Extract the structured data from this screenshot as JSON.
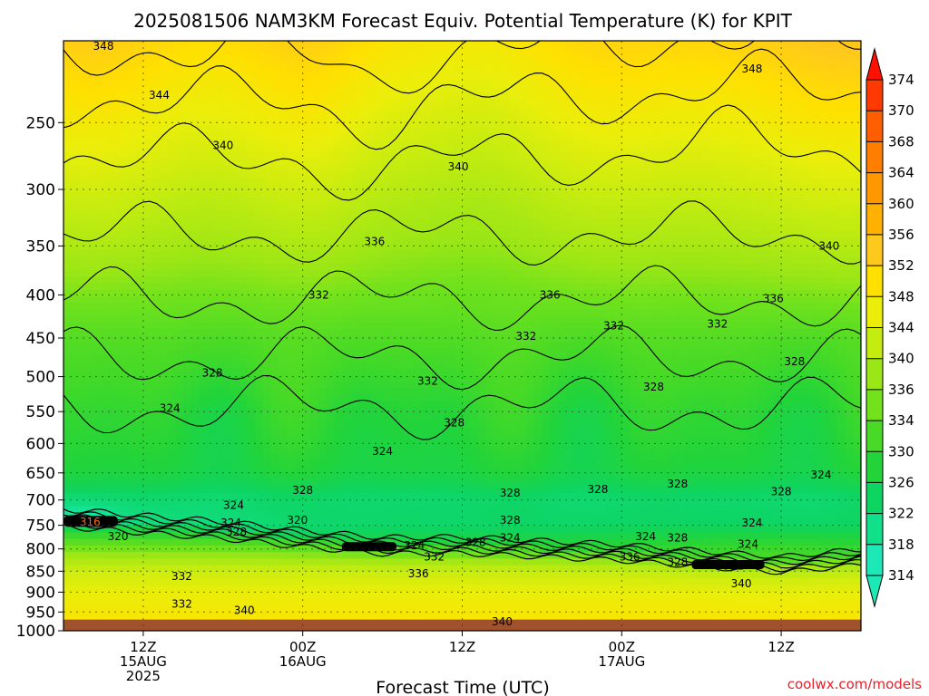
{
  "title": "2025081506 NAM3KM Forecast Equiv. Potential Temperature (K) for KPIT",
  "watermark": "coolwx.com/models",
  "chart_data": {
    "type": "heatmap",
    "title": "2025081506 NAM3KM Forecast Equiv. Potential Temperature (K) for KPIT",
    "xlabel": "Forecast Time (UTC)",
    "ylabel": "",
    "x_range_hours": [
      0,
      60
    ],
    "y_axis": "pressure (hPa), log scale, inverted",
    "y_range": [
      1000,
      200
    ],
    "y_ticks": [
      250,
      300,
      350,
      400,
      450,
      500,
      550,
      600,
      650,
      700,
      750,
      800,
      850,
      900,
      950,
      1000
    ],
    "x_ticks": [
      {
        "hour": 6,
        "label": "12Z",
        "sub1": "15AUG",
        "sub2": "2025"
      },
      {
        "hour": 18,
        "label": "00Z",
        "sub1": "16AUG",
        "sub2": ""
      },
      {
        "hour": 30,
        "label": "12Z",
        "sub1": "",
        "sub2": ""
      },
      {
        "hour": 42,
        "label": "00Z",
        "sub1": "17AUG",
        "sub2": ""
      },
      {
        "hour": 54,
        "label": "12Z",
        "sub1": "",
        "sub2": ""
      }
    ],
    "grid": true,
    "colorbar": {
      "labels": [
        314,
        318,
        322,
        326,
        330,
        334,
        336,
        340,
        344,
        348,
        352,
        356,
        360,
        364,
        368,
        370,
        374
      ],
      "colors": [
        "#1de9b6",
        "#11e08a",
        "#0ed462",
        "#22d43a",
        "#48da26",
        "#72e21c",
        "#9ae616",
        "#c4ec10",
        "#eaee0a",
        "#ffe000",
        "#ffc81c",
        "#ffb000",
        "#ff9800",
        "#ff7e00",
        "#ff5e00",
        "#ff3a00",
        "#ff1000"
      ],
      "extend": "both"
    },
    "profile": [
      {
        "p": 200,
        "theta_e": 349
      },
      {
        "p": 250,
        "theta_e": 344
      },
      {
        "p": 300,
        "theta_e": 340
      },
      {
        "p": 350,
        "theta_e": 337
      },
      {
        "p": 400,
        "theta_e": 334
      },
      {
        "p": 450,
        "theta_e": 331
      },
      {
        "p": 500,
        "theta_e": 329
      },
      {
        "p": 550,
        "theta_e": 327
      },
      {
        "p": 600,
        "theta_e": 326
      },
      {
        "p": 650,
        "theta_e": 325
      },
      {
        "p": 700,
        "theta_e": 321
      },
      {
        "p": 750,
        "theta_e": 322
      },
      {
        "p": 800,
        "theta_e": 330
      },
      {
        "p": 850,
        "theta_e": 336
      },
      {
        "p": 900,
        "theta_e": 339
      },
      {
        "p": 950,
        "theta_e": 341
      },
      {
        "p": 970,
        "theta_e": 342
      }
    ],
    "ground_pressure": 970,
    "contour_labels": [
      {
        "text": "348",
        "hour": 3.0,
        "p": 203
      },
      {
        "text": "348",
        "hour": 51.8,
        "p": 216
      },
      {
        "text": "344",
        "hour": 7.2,
        "p": 232
      },
      {
        "text": "340",
        "hour": 12.0,
        "p": 266
      },
      {
        "text": "340",
        "hour": 29.7,
        "p": 282
      },
      {
        "text": "336",
        "hour": 23.4,
        "p": 346
      },
      {
        "text": "340",
        "hour": 57.6,
        "p": 350
      },
      {
        "text": "332",
        "hour": 19.2,
        "p": 400
      },
      {
        "text": "336",
        "hour": 36.6,
        "p": 400
      },
      {
        "text": "336",
        "hour": 53.4,
        "p": 404
      },
      {
        "text": "332",
        "hour": 34.8,
        "p": 448
      },
      {
        "text": "332",
        "hour": 41.4,
        "p": 435
      },
      {
        "text": "332",
        "hour": 49.2,
        "p": 433
      },
      {
        "text": "328",
        "hour": 11.2,
        "p": 495
      },
      {
        "text": "332",
        "hour": 27.4,
        "p": 506
      },
      {
        "text": "328",
        "hour": 55.0,
        "p": 480
      },
      {
        "text": "328",
        "hour": 44.4,
        "p": 514
      },
      {
        "text": "324",
        "hour": 8.0,
        "p": 545
      },
      {
        "text": "328",
        "hour": 29.4,
        "p": 567
      },
      {
        "text": "324",
        "hour": 24.0,
        "p": 613
      },
      {
        "text": "324",
        "hour": 57.0,
        "p": 654
      },
      {
        "text": "328",
        "hour": 18.0,
        "p": 682
      },
      {
        "text": "328",
        "hour": 33.6,
        "p": 687
      },
      {
        "text": "328",
        "hour": 40.2,
        "p": 680
      },
      {
        "text": "328",
        "hour": 46.2,
        "p": 670
      },
      {
        "text": "328",
        "hour": 54.0,
        "p": 684
      },
      {
        "text": "324",
        "hour": 12.8,
        "p": 710
      },
      {
        "text": "324",
        "hour": 12.6,
        "p": 745
      },
      {
        "text": "320",
        "hour": 17.6,
        "p": 740
      },
      {
        "text": "328",
        "hour": 33.6,
        "p": 740
      },
      {
        "text": "324",
        "hour": 51.8,
        "p": 745
      },
      {
        "text": "328",
        "hour": 13.0,
        "p": 764
      },
      {
        "text": "320",
        "hour": 4.1,
        "p": 773
      },
      {
        "text": "324",
        "hour": 33.6,
        "p": 776
      },
      {
        "text": "328",
        "hour": 31.0,
        "p": 786
      },
      {
        "text": "324",
        "hour": 43.8,
        "p": 773
      },
      {
        "text": "328",
        "hour": 46.2,
        "p": 776
      },
      {
        "text": "324",
        "hour": 51.5,
        "p": 790
      },
      {
        "text": "324",
        "hour": 26.4,
        "p": 793
      },
      {
        "text": "332",
        "hour": 27.9,
        "p": 818
      },
      {
        "text": "336",
        "hour": 42.6,
        "p": 818
      },
      {
        "text": "328",
        "hour": 46.2,
        "p": 830
      },
      {
        "text": "332",
        "hour": 50.4,
        "p": 838
      },
      {
        "text": "336",
        "hour": 26.7,
        "p": 856
      },
      {
        "text": "332",
        "hour": 8.9,
        "p": 862
      },
      {
        "text": "340",
        "hour": 51.0,
        "p": 879
      },
      {
        "text": "316",
        "hour": 2.0,
        "p": 743
      },
      {
        "text": "332",
        "hour": 8.9,
        "p": 930
      },
      {
        "text": "340",
        "hour": 13.6,
        "p": 946
      },
      {
        "text": "340",
        "hour": 33.0,
        "p": 975
      }
    ],
    "ridges": [
      {
        "name": "frontal-band",
        "anchors": [
          [
            0,
            735
          ],
          [
            6,
            748
          ],
          [
            12,
            760
          ],
          [
            18,
            778
          ],
          [
            24,
            793
          ],
          [
            30,
            792
          ],
          [
            36,
            800
          ],
          [
            42,
            808
          ],
          [
            48,
            822
          ],
          [
            54,
            835
          ],
          [
            60,
            818
          ]
        ]
      }
    ]
  }
}
